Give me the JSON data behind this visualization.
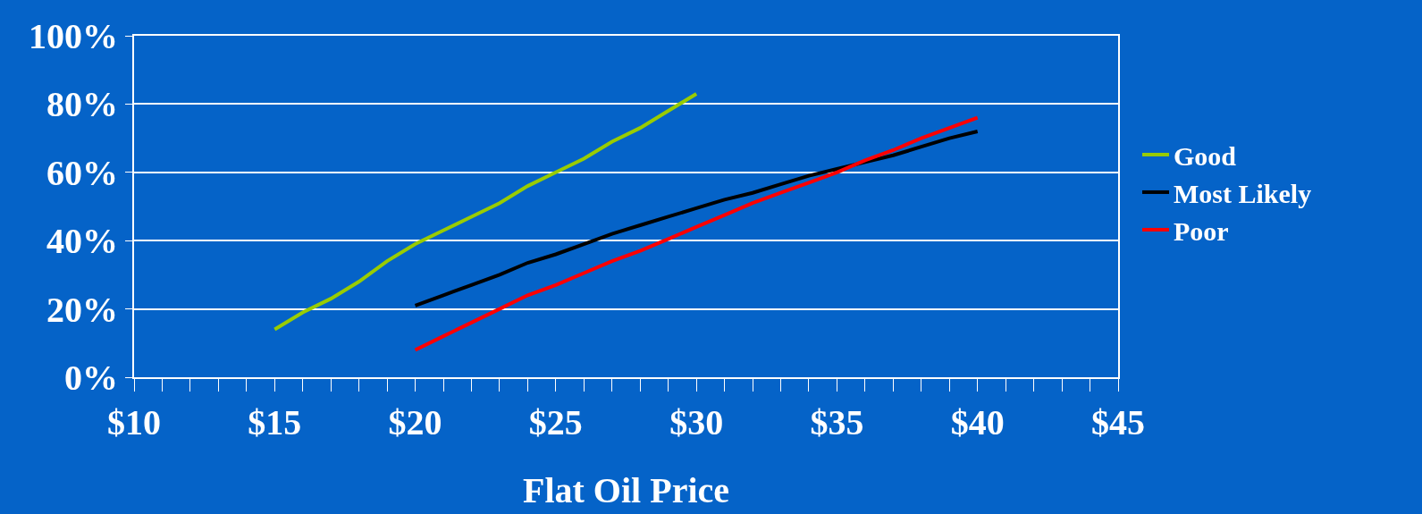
{
  "chart_data": {
    "type": "line",
    "xlabel": "Flat Oil Price",
    "xlim": [
      10,
      45
    ],
    "xticks": [
      {
        "value": 10,
        "label": "$10"
      },
      {
        "value": 15,
        "label": "$15"
      },
      {
        "value": 20,
        "label": "$20"
      },
      {
        "value": 25,
        "label": "$25"
      },
      {
        "value": 30,
        "label": "$30"
      },
      {
        "value": 35,
        "label": "$35"
      },
      {
        "value": 40,
        "label": "$40"
      },
      {
        "value": 45,
        "label": "$45"
      }
    ],
    "ylim": [
      0,
      100
    ],
    "yticks": [
      {
        "value": 0,
        "label": "0%"
      },
      {
        "value": 20,
        "label": "20%"
      },
      {
        "value": 40,
        "label": "40%"
      },
      {
        "value": 60,
        "label": "60%"
      },
      {
        "value": 80,
        "label": "80%"
      },
      {
        "value": 100,
        "label": "100%"
      }
    ],
    "grid": "y",
    "legend": "right",
    "marker": "none",
    "line_style": "solid",
    "series": [
      {
        "name": "Good",
        "color": "#99cc00",
        "x": [
          15,
          16,
          17,
          18,
          19,
          20,
          21,
          22,
          23,
          24,
          25,
          26,
          27,
          28,
          29,
          30
        ],
        "values": [
          14,
          19,
          23,
          28,
          34,
          39,
          43,
          47,
          51,
          56,
          60,
          64,
          69,
          73,
          78,
          83
        ]
      },
      {
        "name": "Most Likely",
        "color": "#000000",
        "x": [
          20,
          21,
          22,
          23,
          24,
          25,
          26,
          27,
          28,
          29,
          30,
          31,
          32,
          33,
          34,
          35,
          36,
          37,
          38,
          39,
          40
        ],
        "values": [
          21,
          24,
          27,
          30,
          33.5,
          36,
          39,
          42,
          44.5,
          47,
          49.5,
          52,
          54,
          56.5,
          59,
          61,
          63,
          65,
          67.5,
          70,
          72
        ]
      },
      {
        "name": "Poor",
        "color": "#ff0000",
        "x": [
          20,
          21,
          22,
          23,
          24,
          25,
          26,
          27,
          28,
          29,
          30,
          31,
          32,
          33,
          34,
          35,
          36,
          37,
          38,
          39,
          40
        ],
        "values": [
          8,
          12,
          16,
          20,
          24,
          27,
          30.5,
          34,
          37,
          40.5,
          44,
          47.5,
          51,
          54,
          57,
          60,
          63.5,
          66.5,
          70,
          73,
          76
        ]
      }
    ]
  }
}
